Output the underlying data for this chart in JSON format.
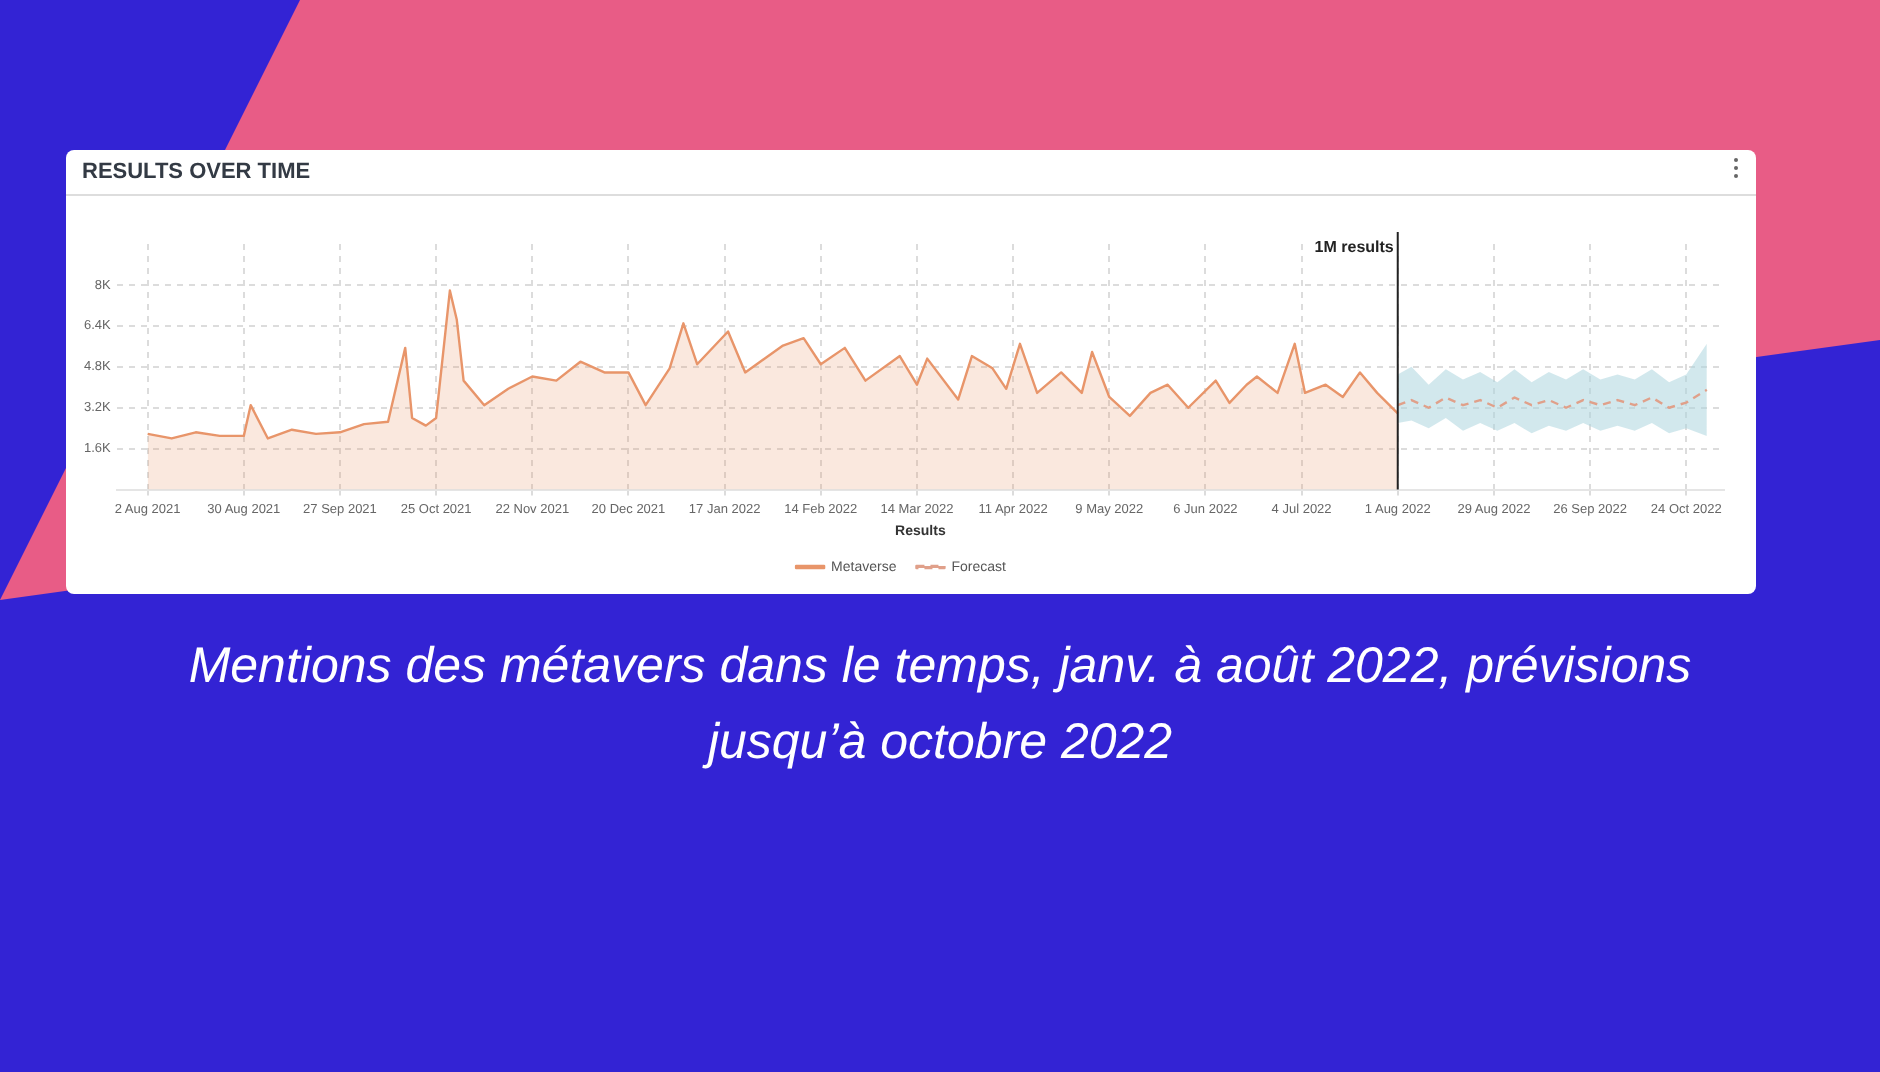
{
  "chart_data": {
    "type": "area",
    "title": "RESULTS OVER TIME",
    "xlabel": "Results",
    "xlim": [
      "2021-07-24",
      "2022-11-04"
    ],
    "xticks": [
      {
        "value": "2021-08-02",
        "label": "2 Aug 2021"
      },
      {
        "value": "2021-08-30",
        "label": "30 Aug 2021"
      },
      {
        "value": "2021-09-27",
        "label": "27 Sep 2021"
      },
      {
        "value": "2021-10-25",
        "label": "25 Oct 2021"
      },
      {
        "value": "2021-11-22",
        "label": "22 Nov 2021"
      },
      {
        "value": "2021-12-20",
        "label": "20 Dec 2021"
      },
      {
        "value": "2022-01-17",
        "label": "17 Jan 2022"
      },
      {
        "value": "2022-02-14",
        "label": "14 Feb 2022"
      },
      {
        "value": "2022-03-14",
        "label": "14 Mar 2022"
      },
      {
        "value": "2022-04-11",
        "label": "11 Apr 2022"
      },
      {
        "value": "2022-05-09",
        "label": "9 May 2022"
      },
      {
        "value": "2022-06-06",
        "label": "6 Jun 2022"
      },
      {
        "value": "2022-07-04",
        "label": "4 Jul 2022"
      },
      {
        "value": "2022-08-01",
        "label": "1 Aug 2022"
      },
      {
        "value": "2022-08-29",
        "label": "29 Aug 2022"
      },
      {
        "value": "2022-09-26",
        "label": "26 Sep 2022"
      },
      {
        "value": "2022-10-24",
        "label": "24 Oct 2022"
      }
    ],
    "ylim": [
      0,
      9600
    ],
    "yticks": [
      {
        "value": 1600,
        "label": "1.6K"
      },
      {
        "value": 3200,
        "label": "3.2K"
      },
      {
        "value": 4800,
        "label": "4.8K"
      },
      {
        "value": 6400,
        "label": "6.4K"
      },
      {
        "value": 8000,
        "label": "8K"
      }
    ],
    "grid": true,
    "legend": "bottom",
    "marker": "none",
    "series": [
      {
        "name": "Metaverse",
        "color": "#e8956a",
        "x": [
          "2021-08-02",
          "2021-08-09",
          "2021-08-16",
          "2021-08-23",
          "2021-08-30",
          "2021-09-01",
          "2021-09-06",
          "2021-09-13",
          "2021-09-20",
          "2021-09-27",
          "2021-10-04",
          "2021-10-11",
          "2021-10-16",
          "2021-10-18",
          "2021-10-22",
          "2021-10-25",
          "2021-10-29",
          "2021-10-31",
          "2021-11-02",
          "2021-11-08",
          "2021-11-15",
          "2021-11-22",
          "2021-11-29",
          "2021-12-06",
          "2021-12-13",
          "2021-12-20",
          "2021-12-25",
          "2022-01-01",
          "2022-01-05",
          "2022-01-09",
          "2022-01-18",
          "2022-01-23",
          "2022-02-03",
          "2022-02-09",
          "2022-02-14",
          "2022-02-21",
          "2022-02-27",
          "2022-03-09",
          "2022-03-14",
          "2022-03-17",
          "2022-03-26",
          "2022-03-30",
          "2022-04-05",
          "2022-04-09",
          "2022-04-13",
          "2022-04-18",
          "2022-04-25",
          "2022-05-01",
          "2022-05-04",
          "2022-05-09",
          "2022-05-15",
          "2022-05-21",
          "2022-05-26",
          "2022-06-01",
          "2022-06-09",
          "2022-06-13",
          "2022-06-18",
          "2022-06-21",
          "2022-06-27",
          "2022-07-02",
          "2022-07-05",
          "2022-07-11",
          "2022-07-16",
          "2022-07-21",
          "2022-07-26",
          "2022-08-01"
        ],
        "values": [
          2180,
          2000,
          2240,
          2100,
          2100,
          3300,
          2000,
          2340,
          2180,
          2240,
          2560,
          2650,
          5540,
          2800,
          2500,
          2800,
          7780,
          6650,
          4260,
          3300,
          3940,
          4420,
          4260,
          5000,
          4580,
          4580,
          3300,
          4740,
          6500,
          4900,
          6180,
          4580,
          5630,
          5920,
          4900,
          5540,
          4260,
          5220,
          4100,
          5120,
          3520,
          5220,
          4740,
          3940,
          5700,
          3780,
          4580,
          3780,
          5380,
          3620,
          2880,
          3780,
          4100,
          3200,
          4260,
          3390,
          4100,
          4420,
          3780,
          5700,
          3780,
          4100,
          3620,
          4580,
          3780,
          2980
        ]
      },
      {
        "name": "Forecast",
        "type": "line",
        "line_style": "dashed",
        "color": "#e0a08a",
        "x": [
          "2022-08-01",
          "2022-08-05",
          "2022-08-10",
          "2022-08-15",
          "2022-08-20",
          "2022-08-25",
          "2022-08-30",
          "2022-09-04",
          "2022-09-09",
          "2022-09-14",
          "2022-09-19",
          "2022-09-24",
          "2022-09-29",
          "2022-10-04",
          "2022-10-09",
          "2022-10-14",
          "2022-10-19",
          "2022-10-24",
          "2022-10-30"
        ],
        "values": [
          3300,
          3500,
          3200,
          3600,
          3300,
          3500,
          3200,
          3600,
          3300,
          3500,
          3200,
          3500,
          3300,
          3500,
          3300,
          3600,
          3200,
          3400,
          3900
        ],
        "lower": [
          2600,
          2700,
          2400,
          2800,
          2300,
          2600,
          2300,
          2600,
          2200,
          2500,
          2300,
          2600,
          2300,
          2500,
          2300,
          2600,
          2200,
          2400,
          2100
        ],
        "upper": [
          4500,
          4800,
          4100,
          4700,
          4300,
          4600,
          4200,
          4700,
          4200,
          4600,
          4300,
          4700,
          4300,
          4500,
          4300,
          4700,
          4200,
          4500,
          5700
        ]
      }
    ],
    "ref_lines": [
      {
        "axis": "x",
        "value": "2022-08-01",
        "label": "1M results",
        "color": "#222222"
      }
    ],
    "annotations": [
      "Mentions des métavers dans le temps, janv. à août 2022, prévisions jusqu’à octobre 2022"
    ]
  }
}
